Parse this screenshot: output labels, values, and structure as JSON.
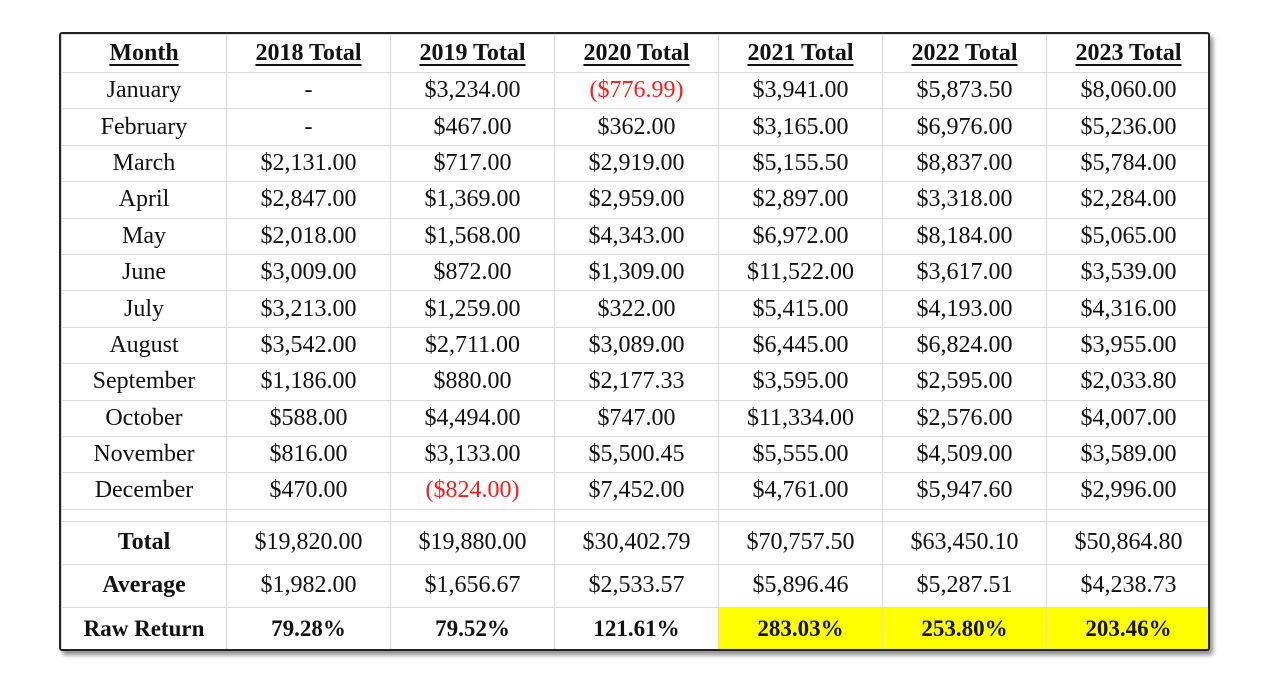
{
  "colors": {
    "highlight": "#ffff00",
    "negative": "#ff1a1a"
  },
  "headers": [
    "Month",
    "2018 Total",
    "2019 Total",
    "2020 Total",
    "2021 Total",
    "2022 Total",
    "2023 Total"
  ],
  "rows": [
    {
      "month": "January",
      "values": [
        "-",
        "$3,234.00",
        "($776.99)",
        "$3,941.00",
        "$5,873.50",
        "$8,060.00"
      ]
    },
    {
      "month": "February",
      "values": [
        "-",
        "$467.00",
        "$362.00",
        "$3,165.00",
        "$6,976.00",
        "$5,236.00"
      ]
    },
    {
      "month": "March",
      "values": [
        "$2,131.00",
        "$717.00",
        "$2,919.00",
        "$5,155.50",
        "$8,837.00",
        "$5,784.00"
      ]
    },
    {
      "month": "April",
      "values": [
        "$2,847.00",
        "$1,369.00",
        "$2,959.00",
        "$2,897.00",
        "$3,318.00",
        "$2,284.00"
      ]
    },
    {
      "month": "May",
      "values": [
        "$2,018.00",
        "$1,568.00",
        "$4,343.00",
        "$6,972.00",
        "$8,184.00",
        "$5,065.00"
      ]
    },
    {
      "month": "June",
      "values": [
        "$3,009.00",
        "$872.00",
        "$1,309.00",
        "$11,522.00",
        "$3,617.00",
        "$3,539.00"
      ]
    },
    {
      "month": "July",
      "values": [
        "$3,213.00",
        "$1,259.00",
        "$322.00",
        "$5,415.00",
        "$4,193.00",
        "$4,316.00"
      ]
    },
    {
      "month": "August",
      "values": [
        "$3,542.00",
        "$2,711.00",
        "$3,089.00",
        "$6,445.00",
        "$6,824.00",
        "$3,955.00"
      ]
    },
    {
      "month": "September",
      "values": [
        "$1,186.00",
        "$880.00",
        "$2,177.33",
        "$3,595.00",
        "$2,595.00",
        "$2,033.80"
      ]
    },
    {
      "month": "October",
      "values": [
        "$588.00",
        "$4,494.00",
        "$747.00",
        "$11,334.00",
        "$2,576.00",
        "$4,007.00"
      ]
    },
    {
      "month": "November",
      "values": [
        "$816.00",
        "$3,133.00",
        "$5,500.45",
        "$5,555.00",
        "$4,509.00",
        "$3,589.00"
      ]
    },
    {
      "month": "December",
      "values": [
        "$470.00",
        "($824.00)",
        "$7,452.00",
        "$4,761.00",
        "$5,947.60",
        "$2,996.00"
      ]
    }
  ],
  "summary": [
    {
      "label": "Total",
      "values": [
        "$19,820.00",
        "$19,880.00",
        "$30,402.79",
        "$70,757.50",
        "$63,450.10",
        "$50,864.80"
      ]
    },
    {
      "label": "Average",
      "values": [
        "$1,982.00",
        "$1,656.67",
        "$2,533.57",
        "$5,896.46",
        "$5,287.51",
        "$4,238.73"
      ]
    },
    {
      "label": "Raw Return",
      "values": [
        "79.28%",
        "79.52%",
        "121.61%",
        "283.03%",
        "253.80%",
        "203.46%"
      ],
      "highlighted": [
        false,
        false,
        false,
        true,
        true,
        true
      ]
    }
  ]
}
